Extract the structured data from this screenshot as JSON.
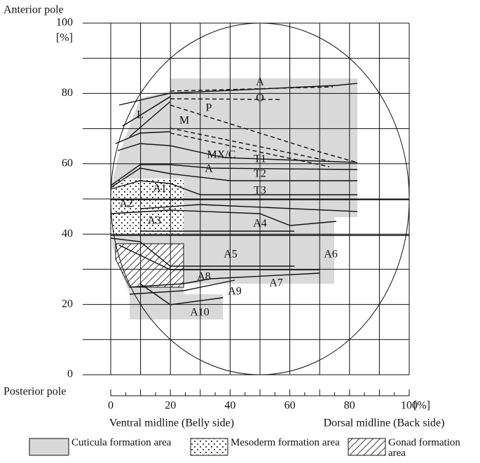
{
  "axes": {
    "y_top": "Anterior pole",
    "y_unit": "[%]",
    "y_bottom": "Posterior pole",
    "yticks": [
      0,
      20,
      40,
      60,
      80,
      100
    ],
    "xticks": [
      0,
      20,
      40,
      60,
      80,
      100
    ],
    "x_unit": "[%]",
    "x_left": "Ventral midline (Belly side)",
    "x_right": "Dorsal midline (Back side)"
  },
  "regions": [
    "A",
    "O",
    "P",
    "L",
    "M",
    "MX/C",
    "T1",
    "A",
    "T2",
    "A1",
    "T3",
    "A2",
    "A3",
    "A4",
    "A5",
    "A6",
    "A7",
    "A8",
    "A9",
    "A10"
  ],
  "legend": [
    "Cuticula formation area",
    "Mesoderm formation area",
    "Gonad formation area"
  ]
}
